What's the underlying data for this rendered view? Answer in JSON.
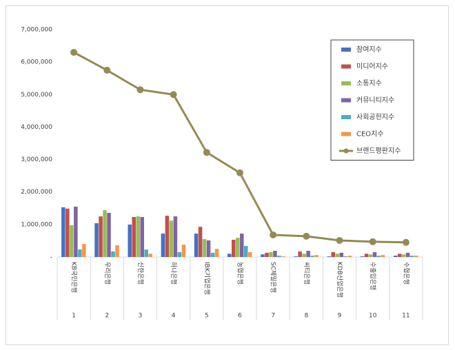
{
  "chart_data": {
    "type": "bar",
    "categories": [
      "KB국민은행",
      "우리은행",
      "신한은행",
      "하나은행",
      "IBK기업은행",
      "농협은행",
      "SC제일은행",
      "씨티은행",
      "KDB산업은행",
      "수출입은행",
      "수협은행"
    ],
    "ranks": [
      1,
      2,
      3,
      4,
      5,
      6,
      7,
      8,
      9,
      10,
      11
    ],
    "ylim": [
      0,
      7000000
    ],
    "yticks": [
      {
        "value": 0,
        "label": "-"
      },
      {
        "value": 1000000,
        "label": "1,000,000"
      },
      {
        "value": 2000000,
        "label": "2,000,000"
      },
      {
        "value": 3000000,
        "label": "3,000,000"
      },
      {
        "value": 4000000,
        "label": "4,000,000"
      },
      {
        "value": 5000000,
        "label": "5,000,000"
      },
      {
        "value": 6000000,
        "label": "6,000,000"
      },
      {
        "value": 7000000,
        "label": "7,000,000"
      }
    ],
    "legend": "upper right",
    "series": [
      {
        "name": "참여지수",
        "color": "#4472c4",
        "values": [
          1530000,
          1040000,
          1000000,
          720000,
          720000,
          100000,
          80000,
          20000,
          20000,
          20000,
          40000
        ]
      },
      {
        "name": "미디어지수",
        "color": "#c0504d",
        "values": [
          1490000,
          1250000,
          1230000,
          1270000,
          930000,
          530000,
          130000,
          170000,
          150000,
          100000,
          100000
        ]
      },
      {
        "name": "소통지수",
        "color": "#9bbb59",
        "values": [
          980000,
          1440000,
          1250000,
          1120000,
          550000,
          590000,
          150000,
          100000,
          100000,
          80000,
          80000
        ]
      },
      {
        "name": "커뮤니티지수",
        "color": "#8064a2",
        "values": [
          1550000,
          1360000,
          1230000,
          1250000,
          510000,
          720000,
          190000,
          190000,
          130000,
          150000,
          130000
        ]
      },
      {
        "name": "사회공헌지수",
        "color": "#4bacc6",
        "values": [
          230000,
          170000,
          230000,
          150000,
          130000,
          340000,
          40000,
          40000,
          20000,
          40000,
          40000
        ]
      },
      {
        "name": "CEO지수",
        "color": "#f79646",
        "values": [
          400000,
          360000,
          100000,
          380000,
          250000,
          150000,
          20000,
          60000,
          40000,
          60000,
          40000
        ]
      },
      {
        "name": "브랜드평판지수",
        "color": "#948a54",
        "type": "line",
        "values": [
          6300000,
          5750000,
          5150000,
          5000000,
          3220000,
          2590000,
          680000,
          640000,
          510000,
          470000,
          450000
        ]
      }
    ]
  }
}
